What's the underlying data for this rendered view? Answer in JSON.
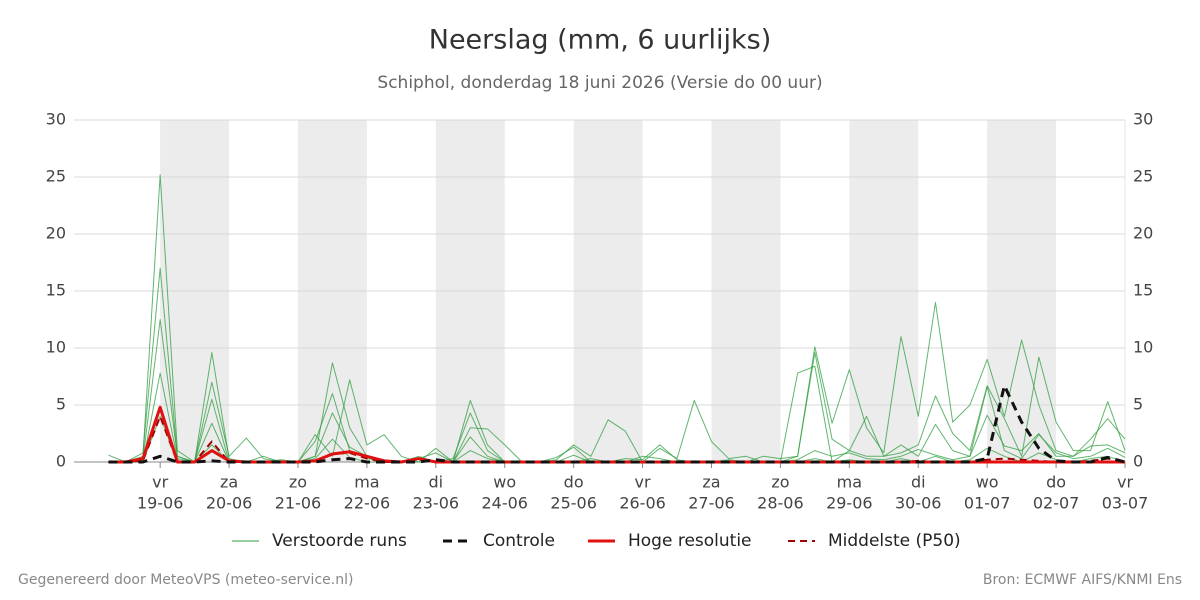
{
  "chart_data": {
    "type": "line",
    "title": "Neerslag (mm, 6 uurlijks)",
    "subtitle": "Schiphol, donderdag 18 juni 2026 (Versie do 00 uur)",
    "footer_left": "Gegenereerd door MeteoVPS (meteo-service.nl)",
    "footer_right": "Bron: ECMWF AIFS/KNMI Ens",
    "x": [
      6,
      12,
      18,
      24,
      30,
      36,
      42,
      48,
      54,
      60,
      66,
      72,
      78,
      84,
      90,
      96,
      102,
      108,
      114,
      120,
      126,
      132,
      138,
      144,
      150,
      156,
      162,
      168,
      174,
      180,
      186,
      192,
      198,
      204,
      210,
      216,
      222,
      228,
      234,
      240,
      246,
      252,
      258,
      264,
      270,
      276,
      282,
      288,
      294,
      300,
      306,
      312,
      318,
      324,
      330,
      336,
      342,
      348,
      354,
      360
    ],
    "xlim": [
      -6,
      360
    ],
    "xticks": [
      {
        "value": 24,
        "label": "vr",
        "date": "19-06"
      },
      {
        "value": 48,
        "label": "za",
        "date": "20-06"
      },
      {
        "value": 72,
        "label": "zo",
        "date": "21-06"
      },
      {
        "value": 96,
        "label": "ma",
        "date": "22-06"
      },
      {
        "value": 120,
        "label": "di",
        "date": "23-06"
      },
      {
        "value": 144,
        "label": "wo",
        "date": "24-06"
      },
      {
        "value": 168,
        "label": "do",
        "date": "25-06"
      },
      {
        "value": 192,
        "label": "vr",
        "date": "26-06"
      },
      {
        "value": 216,
        "label": "za",
        "date": "27-06"
      },
      {
        "value": 240,
        "label": "zo",
        "date": "28-06"
      },
      {
        "value": 264,
        "label": "ma",
        "date": "29-06"
      },
      {
        "value": 288,
        "label": "di",
        "date": "30-06"
      },
      {
        "value": 312,
        "label": "wo",
        "date": "01-07"
      },
      {
        "value": 336,
        "label": "do",
        "date": "02-07"
      },
      {
        "value": 360,
        "label": "vr",
        "date": "03-07"
      }
    ],
    "ylim": [
      0,
      30
    ],
    "yticks": [
      0,
      5,
      10,
      15,
      20,
      25,
      30
    ],
    "grid": true,
    "series": [
      {
        "name": "Verstoorde runs",
        "color": "#2e9e3e",
        "line_style": "solid",
        "runs": [
          [
            0,
            0,
            0.5,
            25.2,
            1,
            0,
            9.6,
            0.3,
            0,
            0,
            0.2,
            0,
            0.5,
            8.7,
            3,
            0.5,
            0,
            0,
            0.3,
            0.8,
            0,
            5.4,
            1.5,
            0,
            0,
            0,
            0.4,
            1.3,
            0,
            0,
            0.3,
            0.2,
            1.5,
            0.2,
            0,
            0,
            0,
            0,
            0.5,
            0.3,
            0.5,
            10.1,
            3.4,
            8.1,
            3,
            0.8,
            11,
            4,
            14,
            3.5,
            5,
            9,
            4,
            10.7,
            5,
            1,
            0.5,
            2,
            3.8,
            2
          ],
          [
            0.6,
            0,
            0.8,
            17,
            0.5,
            0,
            7,
            0.5,
            2.1,
            0.3,
            0,
            0,
            2.4,
            0.5,
            7.2,
            1.5,
            2.4,
            0.5,
            0,
            1.2,
            0,
            3,
            2.9,
            1.5,
            0,
            0,
            0.2,
            1.5,
            0.5,
            3.7,
            2.7,
            0,
            1.2,
            0.3,
            5.4,
            1.8,
            0.3,
            0.5,
            0,
            0,
            7.8,
            8.4,
            0,
            1,
            4,
            0.5,
            0.8,
            1.5,
            5.8,
            2.5,
            1,
            6.7,
            3.8,
            0.5,
            9.2,
            3.5,
            1,
            1,
            5.3,
            1
          ],
          [
            0,
            0,
            0.2,
            12.5,
            0.5,
            0,
            5.5,
            0,
            0,
            0.5,
            0,
            0,
            1.8,
            6,
            1,
            0.3,
            0,
            0,
            0.5,
            0,
            0.3,
            4.3,
            1,
            0,
            0,
            0,
            0,
            0.6,
            0,
            0,
            0,
            0.5,
            0.3,
            0,
            0,
            0,
            0.2,
            0,
            0,
            0,
            0.5,
            9.6,
            2,
            1,
            0.5,
            0.5,
            1.5,
            0.5,
            3.3,
            1,
            0.5,
            4.1,
            1.4,
            1,
            2.5,
            0.5,
            0.5,
            1.4,
            1.5,
            0.8
          ],
          [
            0,
            0,
            0,
            7.8,
            0.3,
            0,
            3.4,
            0,
            0,
            0,
            0,
            0,
            0.5,
            4.3,
            1.3,
            0.5,
            0.2,
            0,
            0,
            0,
            0,
            2.2,
            0.5,
            0,
            0,
            0,
            0,
            0,
            0.3,
            0,
            0,
            0,
            0,
            0,
            0.1,
            0,
            0,
            0,
            0,
            0,
            0.2,
            1,
            0.5,
            0.8,
            0.3,
            0.2,
            0.5,
            1.1,
            0.6,
            0.2,
            0.5,
            6.6,
            1,
            0.3,
            2.4,
            0.8,
            0.3,
            0.5,
            1.2,
            0.4
          ],
          [
            0,
            0,
            0,
            4,
            0,
            0,
            1.5,
            0,
            0,
            0,
            0,
            0,
            0.3,
            2,
            0.4,
            0,
            0,
            0,
            0,
            0,
            0,
            1,
            0.3,
            0,
            0,
            0,
            0,
            0,
            0,
            0,
            0,
            0,
            0,
            0,
            0,
            0,
            0,
            0,
            0,
            0,
            0,
            0.3,
            0,
            0.2,
            0,
            0,
            0.3,
            0,
            0.5,
            0,
            0.2,
            1.2,
            0.5,
            0,
            0.8,
            0.2,
            0,
            0.3,
            0.5,
            0
          ]
        ]
      },
      {
        "name": "Controle",
        "color": "#111111",
        "line_style": "dashed",
        "values": [
          0,
          0,
          0,
          0.5,
          0,
          0,
          0.1,
          0,
          0,
          0,
          0,
          0,
          0,
          0.2,
          0.3,
          0,
          0,
          0,
          0,
          0.2,
          0,
          0,
          0,
          0,
          0,
          0,
          0,
          0,
          0,
          0,
          0,
          0,
          0,
          0,
          0,
          0,
          0,
          0,
          0,
          0,
          0,
          0,
          0,
          0,
          0,
          0,
          0,
          0,
          0,
          0,
          0,
          0.3,
          6.7,
          3.5,
          1.2,
          0.1,
          0,
          0,
          0.4,
          0
        ]
      },
      {
        "name": "Hoge resolutie",
        "color": "#e01010",
        "line_style": "solid",
        "values": [
          0,
          0,
          0.3,
          4.8,
          0,
          0,
          1,
          0.1,
          0,
          0,
          0,
          0,
          0.1,
          0.7,
          0.9,
          0.5,
          0.1,
          0,
          0.3,
          0,
          0,
          0,
          0,
          0,
          0,
          0,
          0,
          0,
          0,
          0,
          0,
          0,
          0,
          0,
          0,
          0,
          0,
          0,
          0,
          0,
          0,
          0,
          0,
          0,
          0,
          0,
          0,
          0,
          0,
          0,
          0,
          0,
          0,
          0,
          0,
          0,
          0,
          0,
          0,
          0
        ]
      },
      {
        "name": "Middelste (P50)",
        "color": "#a00000",
        "line_style": "dashed",
        "values": [
          0,
          0,
          0.1,
          4,
          0,
          0,
          1.8,
          0,
          0,
          0,
          0,
          0,
          0,
          0.7,
          0.8,
          0.3,
          0,
          0,
          0.2,
          0,
          0,
          0,
          0,
          0,
          0,
          0,
          0,
          0,
          0,
          0,
          0,
          0,
          0,
          0,
          0,
          0,
          0,
          0,
          0,
          0,
          0,
          0,
          0,
          0,
          0,
          0,
          0,
          0.1,
          0,
          0,
          0,
          0.2,
          0.3,
          0.2,
          0.1,
          0,
          0,
          0.1,
          0.3,
          0
        ]
      }
    ]
  }
}
